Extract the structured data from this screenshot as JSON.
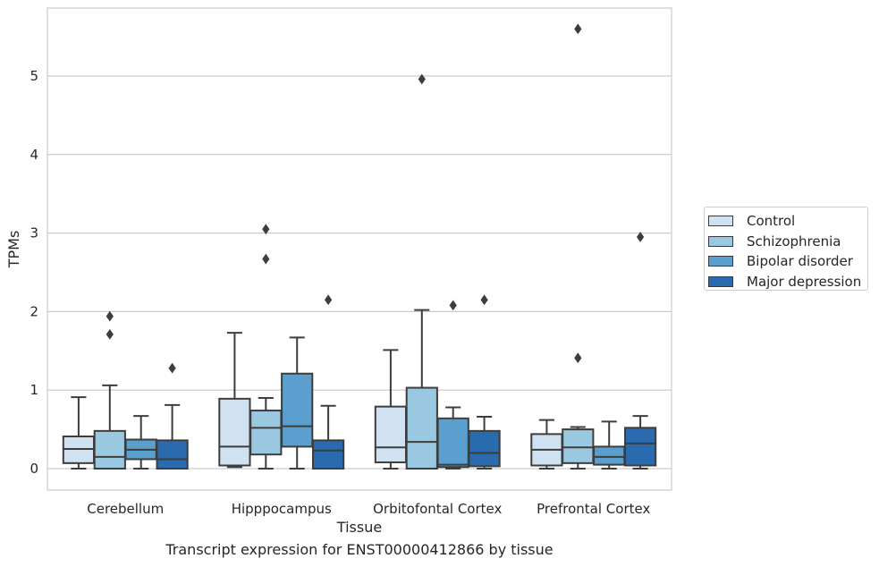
{
  "chart_data": {
    "type": "box",
    "xlabel": "Tissue",
    "ylabel": "TPMs",
    "caption": "Transcript expression for ENST00000412866 by tissue",
    "categories": [
      "Cerebellum",
      "Hipppocampus",
      "Orbitofontal Cortex",
      "Prefrontal Cortex"
    ],
    "ylim": [
      -0.27,
      5.9
    ],
    "yticks": [
      0,
      1,
      2,
      3,
      4,
      5
    ],
    "grid": "horizontal",
    "legend_position": "right",
    "series": [
      {
        "name": "Control",
        "color": "#d0e1f1",
        "boxes": [
          {
            "whisker_low": 0.0,
            "q1": 0.07,
            "median": 0.25,
            "q3": 0.41,
            "whisker_high": 0.91,
            "outliers": []
          },
          {
            "whisker_low": 0.02,
            "q1": 0.04,
            "median": 0.28,
            "q3": 0.89,
            "whisker_high": 1.73,
            "outliers": []
          },
          {
            "whisker_low": 0.0,
            "q1": 0.08,
            "median": 0.27,
            "q3": 0.79,
            "whisker_high": 1.51,
            "outliers": []
          },
          {
            "whisker_low": 0.0,
            "q1": 0.04,
            "median": 0.24,
            "q3": 0.44,
            "whisker_high": 0.62,
            "outliers": []
          }
        ]
      },
      {
        "name": "Schizophrenia",
        "color": "#9ac8e0",
        "boxes": [
          {
            "whisker_low": 0.0,
            "q1": 0.0,
            "median": 0.15,
            "q3": 0.48,
            "whisker_high": 1.06,
            "outliers": [
              1.71,
              1.94
            ]
          },
          {
            "whisker_low": 0.0,
            "q1": 0.18,
            "median": 0.52,
            "q3": 0.74,
            "whisker_high": 0.9,
            "outliers": [
              2.67,
              3.05
            ]
          },
          {
            "whisker_low": 0.0,
            "q1": 0.0,
            "median": 0.34,
            "q3": 1.03,
            "whisker_high": 2.02,
            "outliers": [
              4.96
            ]
          },
          {
            "whisker_low": 0.0,
            "q1": 0.07,
            "median": 0.27,
            "q3": 0.5,
            "whisker_high": 0.53,
            "outliers": [
              1.41,
              5.6
            ]
          }
        ]
      },
      {
        "name": "Bipolar disorder",
        "color": "#5a9fcd",
        "boxes": [
          {
            "whisker_low": 0.0,
            "q1": 0.12,
            "median": 0.24,
            "q3": 0.37,
            "whisker_high": 0.67,
            "outliers": []
          },
          {
            "whisker_low": 0.0,
            "q1": 0.28,
            "median": 0.54,
            "q3": 1.21,
            "whisker_high": 1.67,
            "outliers": []
          },
          {
            "whisker_low": 0.0,
            "q1": 0.02,
            "median": 0.05,
            "q3": 0.64,
            "whisker_high": 0.78,
            "outliers": [
              2.08
            ]
          },
          {
            "whisker_low": 0.0,
            "q1": 0.05,
            "median": 0.15,
            "q3": 0.28,
            "whisker_high": 0.6,
            "outliers": []
          }
        ]
      },
      {
        "name": "Major depression",
        "color": "#2a6aaf",
        "boxes": [
          {
            "whisker_low": 0.0,
            "q1": 0.0,
            "median": 0.12,
            "q3": 0.36,
            "whisker_high": 0.81,
            "outliers": [
              1.28
            ]
          },
          {
            "whisker_low": 0.0,
            "q1": 0.0,
            "median": 0.23,
            "q3": 0.36,
            "whisker_high": 0.8,
            "outliers": [
              2.15
            ]
          },
          {
            "whisker_low": 0.0,
            "q1": 0.03,
            "median": 0.2,
            "q3": 0.48,
            "whisker_high": 0.66,
            "outliers": [
              2.15
            ]
          },
          {
            "whisker_low": 0.0,
            "q1": 0.04,
            "median": 0.32,
            "q3": 0.52,
            "whisker_high": 0.67,
            "outliers": [
              2.95
            ]
          }
        ]
      }
    ]
  }
}
